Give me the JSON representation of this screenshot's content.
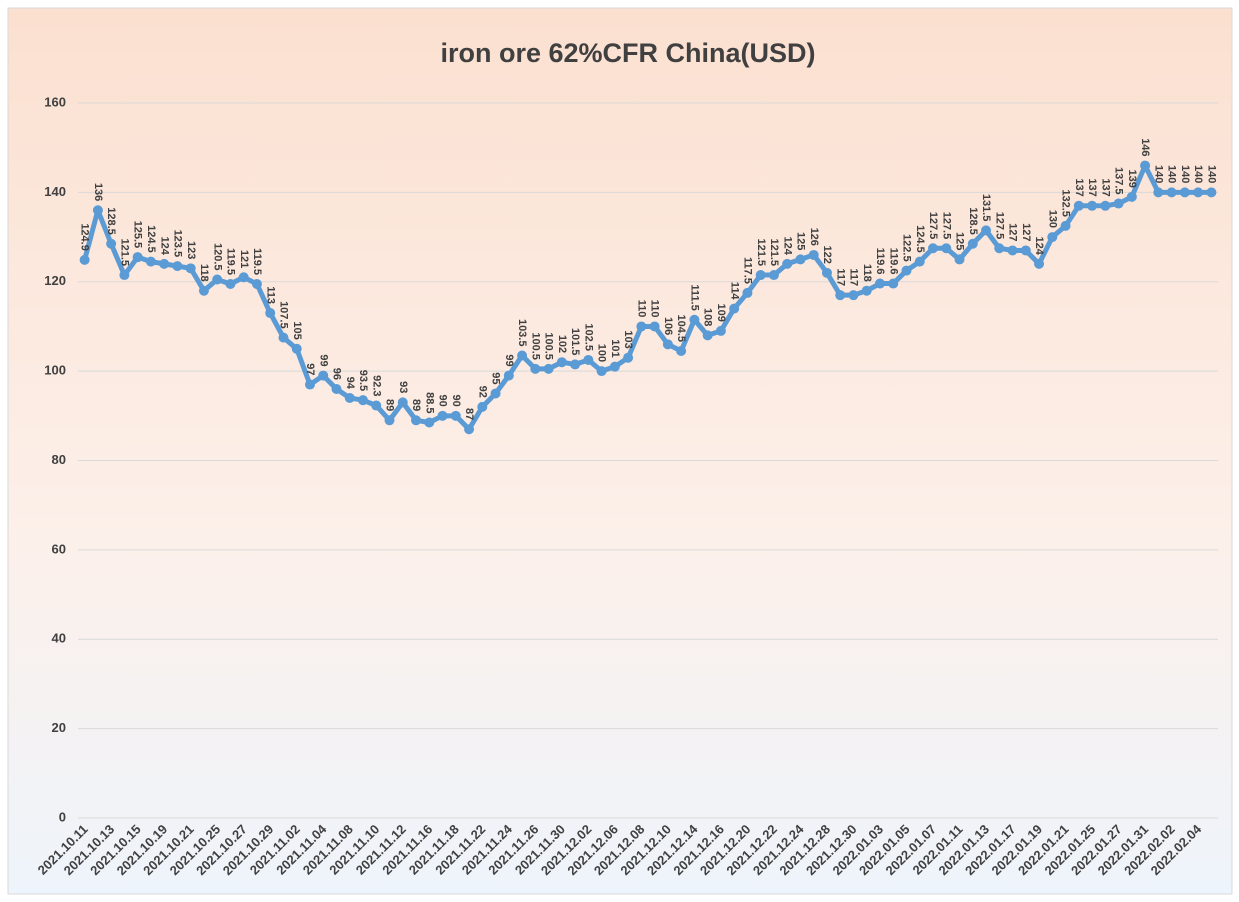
{
  "chart_data": {
    "type": "line",
    "title": "iron ore 62%CFR China(USD)",
    "categories": [
      "2021.10.11",
      null,
      "2021.10.13",
      null,
      "2021.10.15",
      null,
      "2021.10.19",
      null,
      "2021.10.21",
      null,
      "2021.10.25",
      null,
      "2021.10.27",
      null,
      "2021.10.29",
      null,
      "2021.11.02",
      null,
      "2021.11.04",
      null,
      "2021.11.08",
      null,
      "2021.11.10",
      null,
      "2021.11.12",
      null,
      "2021.11.16",
      null,
      "2021.11.18",
      null,
      "2021.11.22",
      null,
      "2021.11.24",
      null,
      "2021.11.26",
      null,
      "2021.11.30",
      null,
      "2021.12.02",
      null,
      "2021.12.06",
      null,
      "2021.12.08",
      null,
      "2021.12.10",
      null,
      "2021.12.14",
      null,
      "2021.12.16",
      null,
      "2021.12.20",
      null,
      "2021.12.22",
      null,
      "2021.12.24",
      null,
      "2021.12.28",
      null,
      "2021.12.30",
      null,
      "2022.01.03",
      null,
      "2022.01.05",
      null,
      "2022.01.07",
      null,
      "2022.01.11",
      null,
      "2022.01.13",
      null,
      "2022.01.17",
      null,
      "2022.01.19",
      null,
      "2022.01.21",
      null,
      "2022.01.25",
      null,
      "2022.01.27",
      null,
      "2022.01.31",
      null,
      "2022.02.02",
      null,
      "2022.02.04",
      null
    ],
    "series": [
      {
        "color": "#5b9bd5",
        "values": [
          124.9,
          136,
          128.5,
          121.5,
          125.5,
          124.5,
          124,
          123.5,
          123,
          118,
          120.5,
          119.5,
          121,
          119.5,
          113,
          107.5,
          105,
          97,
          99,
          96,
          94,
          93.5,
          92.3,
          89,
          93,
          89,
          88.5,
          90,
          90,
          87,
          92,
          95,
          99,
          103.5,
          100.5,
          100.5,
          102,
          101.5,
          102.5,
          100,
          101,
          103,
          110,
          110,
          106,
          104.5,
          111.5,
          108,
          109,
          114,
          117.5,
          121.5,
          121.5,
          124,
          125,
          126,
          122,
          117,
          117,
          118,
          119.6,
          119.6,
          122.5,
          124.5,
          127.5,
          127.5,
          125,
          128.5,
          131.5,
          127.5,
          127,
          127,
          124,
          130,
          132.5,
          137,
          137,
          137,
          137.5,
          139,
          146,
          140,
          140,
          140,
          140,
          140
        ]
      }
    ],
    "ylim": [
      0,
      160
    ],
    "yticks": [
      0,
      20,
      40,
      60,
      80,
      100,
      120,
      140,
      160
    ],
    "grid": true
  }
}
